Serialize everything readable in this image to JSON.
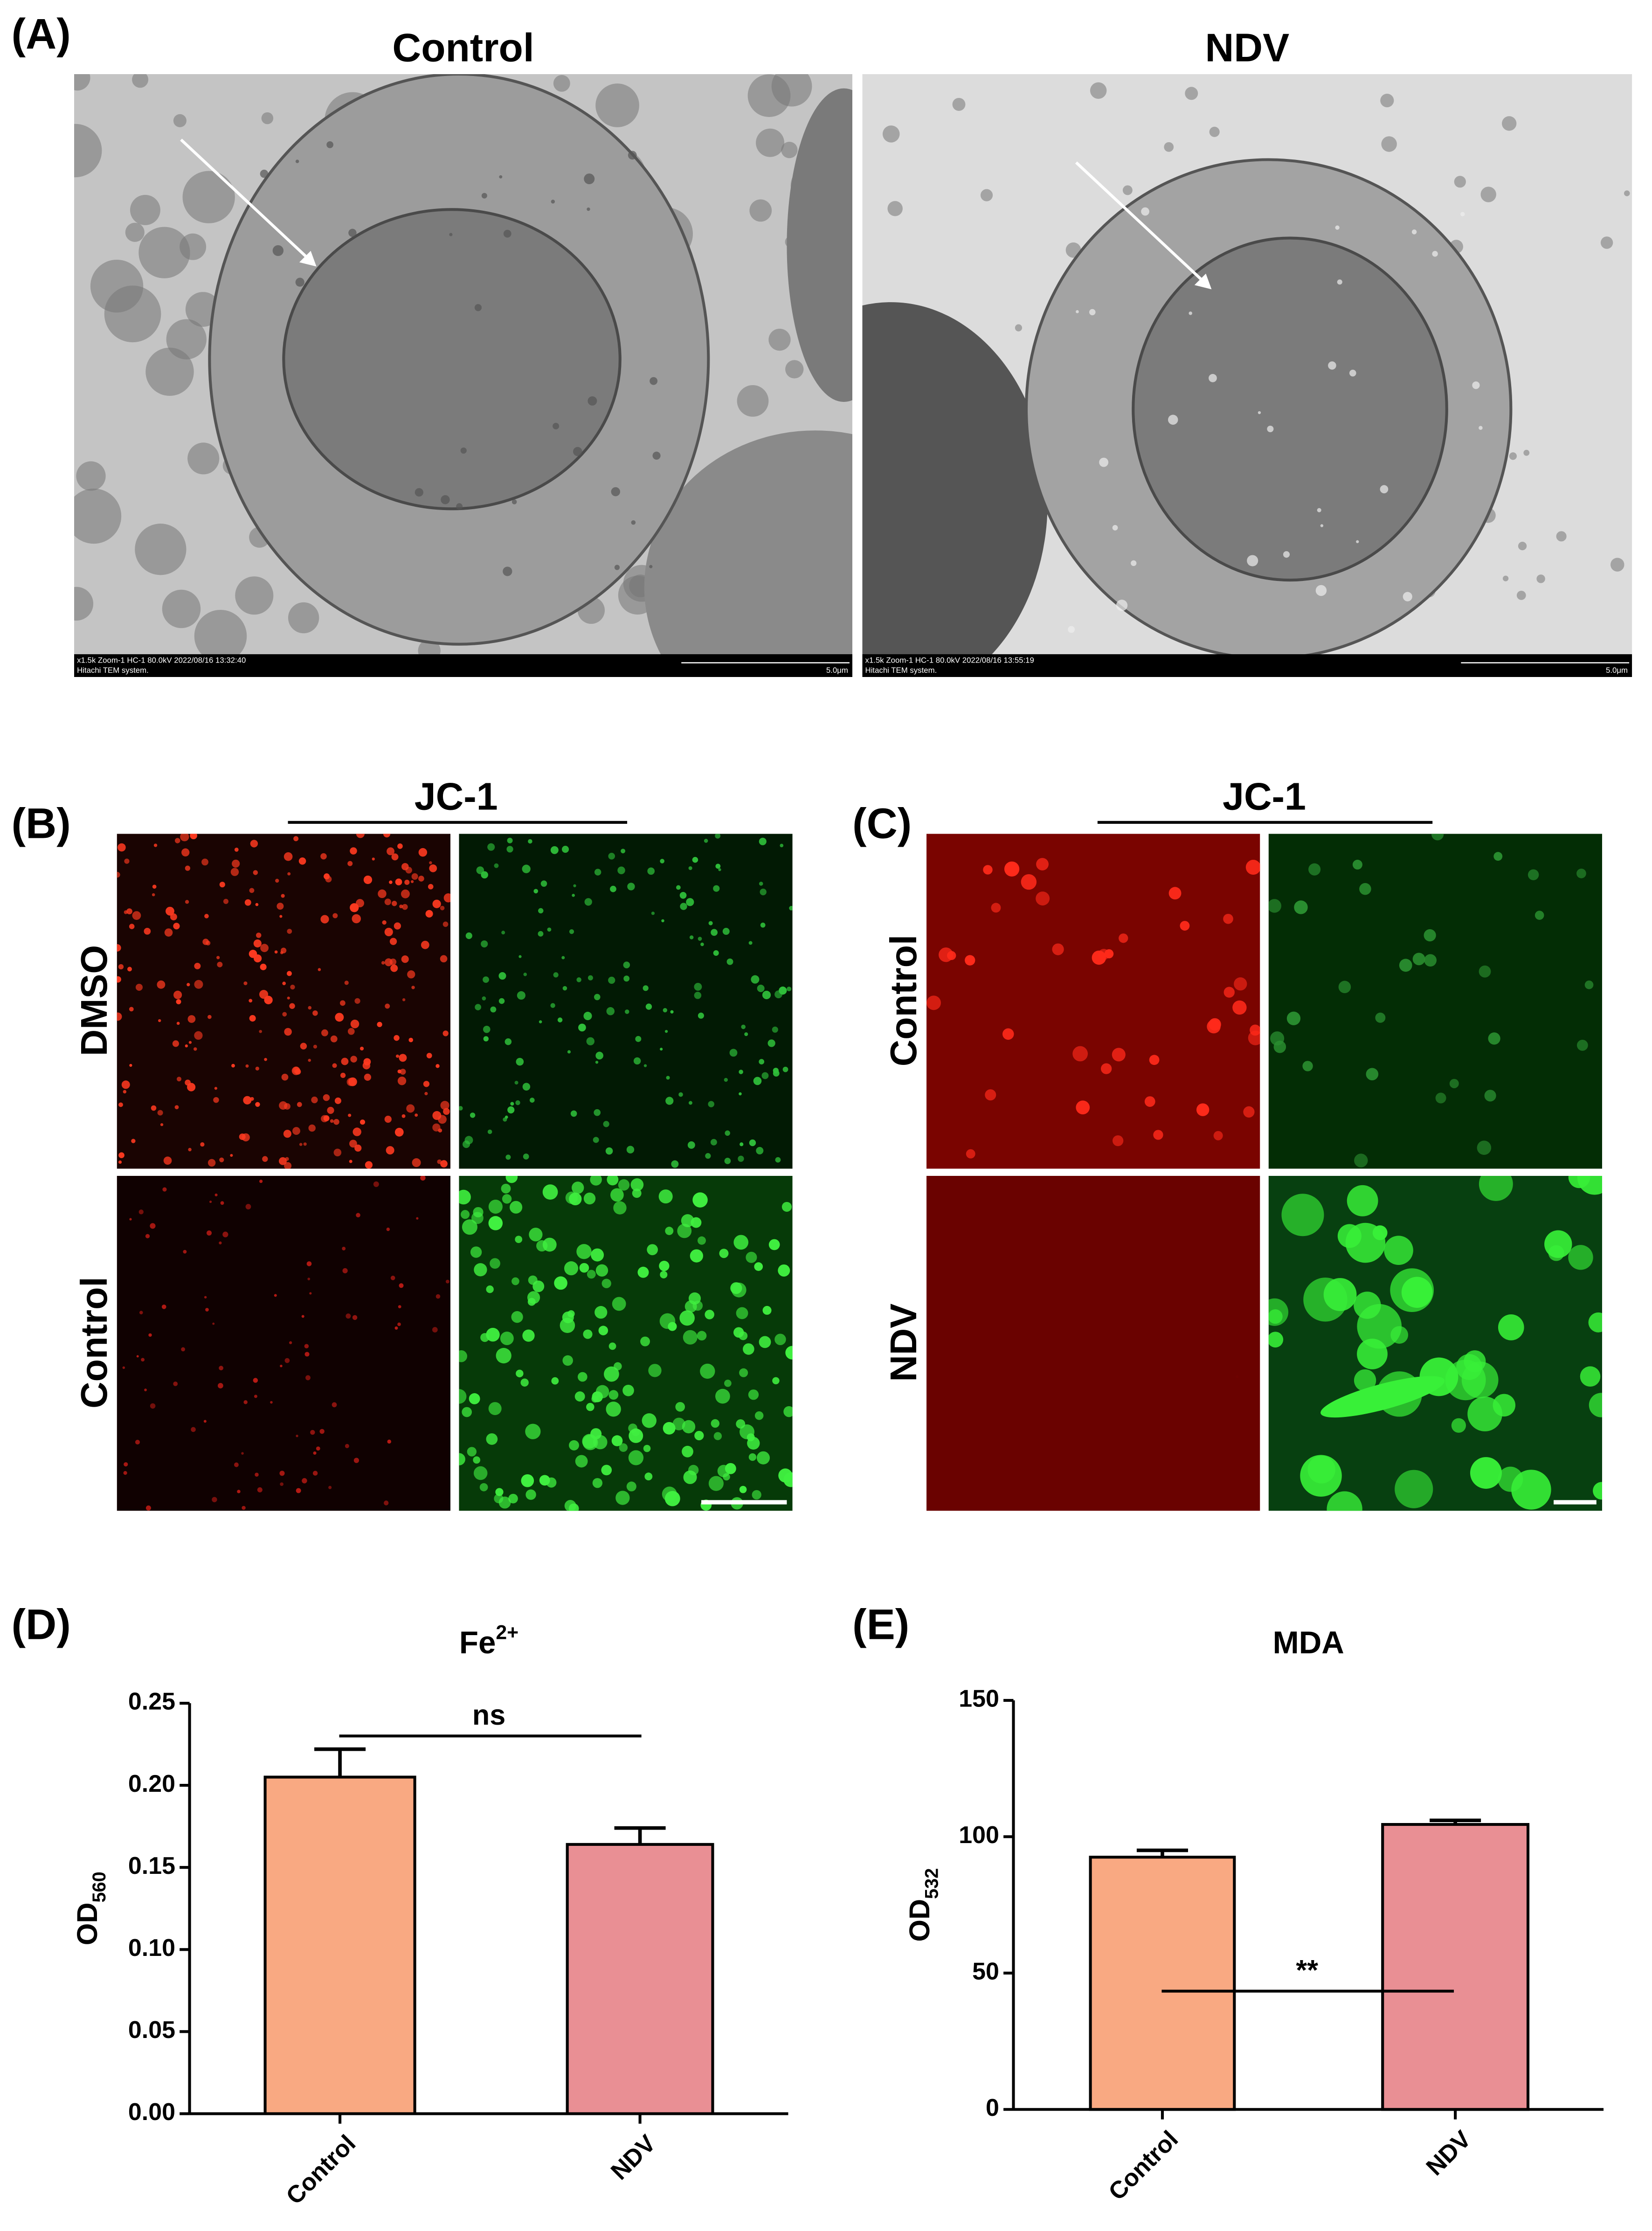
{
  "panels": {
    "A": {
      "label": "(A)",
      "images": [
        {
          "title": "Control",
          "footer_line1": "x1.5k Zoom-1 HC-1 80.0kV 2022/08/16 13:32:40",
          "footer_line2": "Hitachi TEM system.",
          "scale": "5.0μm"
        },
        {
          "title": "NDV",
          "footer_line1": "x1.5k Zoom-1 HC-1 80.0kV 2022/08/16 13:55:19",
          "footer_line2": "Hitachi TEM system.",
          "scale": "5.0μm"
        }
      ]
    },
    "B": {
      "label": "(B)",
      "header": "JC-1",
      "rows": [
        "DMSO",
        "Control"
      ]
    },
    "C": {
      "label": "(C)",
      "header": "JC-1",
      "rows": [
        "Control",
        "NDV"
      ]
    }
  },
  "chart_data": [
    {
      "type": "bar",
      "panel_label": "(D)",
      "title": "Fe",
      "title_superscript": "2+",
      "ylabel": "OD",
      "ylabel_subscript": "560",
      "categories": [
        "Control",
        "NDV"
      ],
      "values": [
        0.205,
        0.164
      ],
      "errors": [
        0.017,
        0.01
      ],
      "colors": [
        "#f9a982",
        "#e98f94"
      ],
      "ylim": [
        0,
        0.25
      ],
      "yticks": [
        {
          "value": 0,
          "label": "0.00"
        },
        0.05,
        {
          "value": 0.1,
          "label": "0.10"
        },
        0.15,
        {
          "value": 0.2,
          "label": "0.20"
        },
        0.25
      ],
      "annotation": "ns"
    },
    {
      "type": "bar",
      "panel_label": "(E)",
      "title": "MDA",
      "ylabel": "OD",
      "ylabel_subscript": "532",
      "categories": [
        "Control",
        "NDV"
      ],
      "values": [
        92.5,
        104.5
      ],
      "errors": [
        2.5,
        1.5
      ],
      "colors": [
        "#f9a982",
        "#e98f94"
      ],
      "ylim": [
        0,
        150
      ],
      "yticks": [
        0,
        50,
        100,
        150
      ],
      "annotation": "**"
    }
  ]
}
